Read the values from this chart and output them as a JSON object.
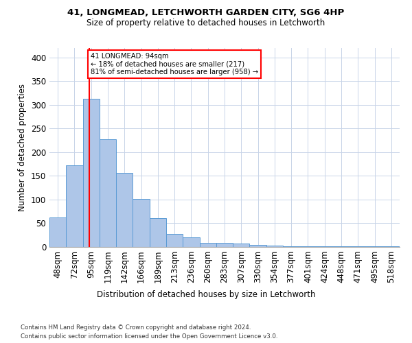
{
  "title1": "41, LONGMEAD, LETCHWORTH GARDEN CITY, SG6 4HP",
  "title2": "Size of property relative to detached houses in Letchworth",
  "xlabel": "Distribution of detached houses by size in Letchworth",
  "ylabel": "Number of detached properties",
  "categories": [
    "48sqm",
    "72sqm",
    "95sqm",
    "119sqm",
    "142sqm",
    "166sqm",
    "189sqm",
    "213sqm",
    "236sqm",
    "260sqm",
    "283sqm",
    "307sqm",
    "330sqm",
    "354sqm",
    "377sqm",
    "401sqm",
    "424sqm",
    "448sqm",
    "471sqm",
    "495sqm",
    "518sqm"
  ],
  "values": [
    63,
    172,
    313,
    228,
    157,
    102,
    61,
    27,
    21,
    8,
    9,
    7,
    5,
    3,
    2,
    1,
    1,
    1,
    1,
    1,
    1
  ],
  "bar_color": "#aec6e8",
  "bar_edge_color": "#5b9bd5",
  "red_line_x": 1.88,
  "annotation_text": "41 LONGMEAD: 94sqm\n← 18% of detached houses are smaller (217)\n81% of semi-detached houses are larger (958) →",
  "footer1": "Contains HM Land Registry data © Crown copyright and database right 2024.",
  "footer2": "Contains public sector information licensed under the Open Government Licence v3.0.",
  "ylim": [
    0,
    420
  ],
  "background_color": "#ffffff",
  "grid_color": "#c8d4e8"
}
